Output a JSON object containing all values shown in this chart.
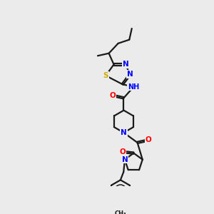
{
  "background_color": "#ebebeb",
  "bond_color": "#1a1a1a",
  "atom_colors": {
    "N": "#0000ff",
    "O": "#ff0000",
    "S": "#ccaa00",
    "H": "#6699aa",
    "C": "#1a1a1a"
  },
  "figsize": [
    3.0,
    3.0
  ],
  "dpi": 100
}
